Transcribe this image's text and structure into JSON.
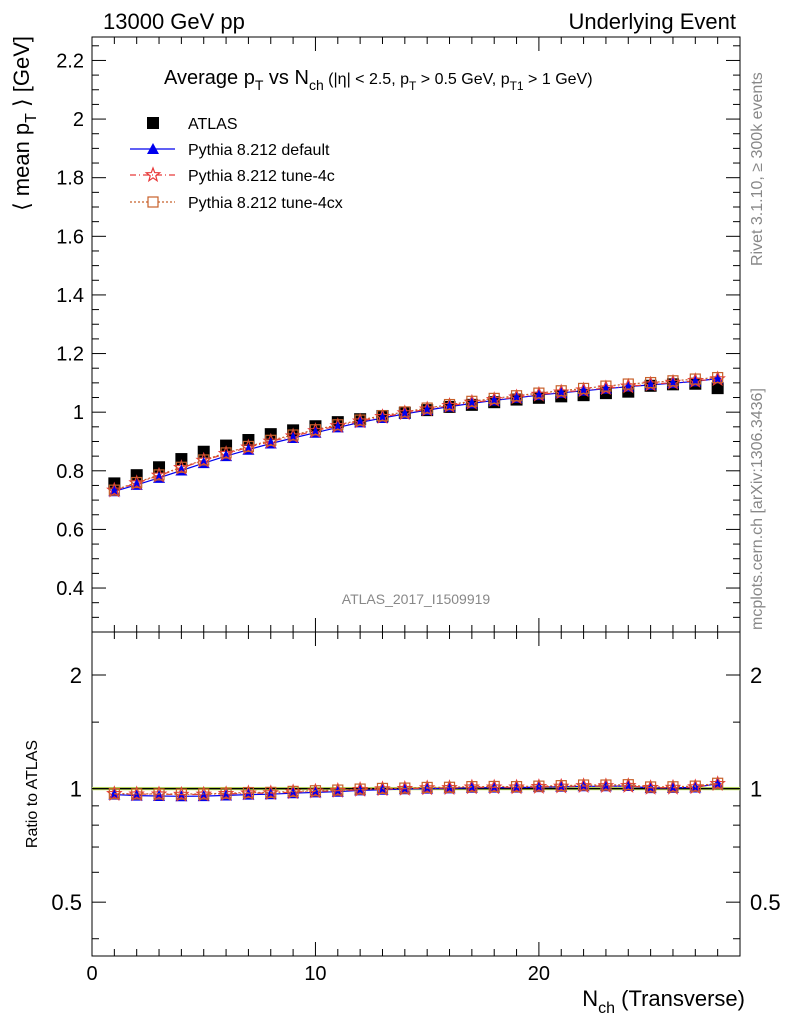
{
  "header": {
    "left": "13000 GeV pp",
    "right": "Underlying Event"
  },
  "side": {
    "rivet": "Rivet 3.1.10, ≥ 300k events",
    "mcplots": "mcplots.cern.ch [arXiv:1306.3436]"
  },
  "watermark": "ATLAS_2017_I1509919",
  "chart_data": [
    {
      "type": "scatter",
      "title": "Average p_T vs N_ch (|η| < 2.5, p_T > 0.5 GeV, p_T1 > 1 GeV)",
      "xlabel": "N_ch (Transverse)",
      "ylabel": "⟨ mean p_T ⟩ [GeV]",
      "xlim": [
        0,
        29
      ],
      "ylim": [
        0.25,
        2.28
      ],
      "y_ticks": [
        0.4,
        0.6,
        0.8,
        1.0,
        1.2,
        1.4,
        1.6,
        1.8,
        2.0,
        2.2
      ],
      "y_tick_labels": [
        "0.4",
        "0.6",
        "0.8",
        "1",
        "1.2",
        "1.4",
        "1.6",
        "1.8",
        "2",
        "2.2"
      ],
      "x": [
        1,
        2,
        3,
        4,
        5,
        6,
        7,
        8,
        9,
        10,
        11,
        12,
        13,
        14,
        15,
        16,
        17,
        18,
        19,
        20,
        21,
        22,
        23,
        24,
        25,
        26,
        27,
        28
      ],
      "legend_position": "top-left",
      "series": [
        {
          "name": "ATLAS",
          "color": "#000000",
          "marker": "square",
          "values": [
            0.757,
            0.785,
            0.812,
            0.84,
            0.865,
            0.886,
            0.905,
            0.925,
            0.938,
            0.952,
            0.966,
            0.976,
            0.987,
            0.998,
            1.007,
            1.018,
            1.025,
            1.034,
            1.043,
            1.049,
            1.054,
            1.058,
            1.065,
            1.07,
            1.09,
            1.095,
            1.097,
            1.082
          ]
        },
        {
          "name": "Pythia 8.212 default",
          "color": "#0000ee",
          "marker": "triangle",
          "values": [
            0.73,
            0.752,
            0.776,
            0.801,
            0.826,
            0.85,
            0.872,
            0.893,
            0.912,
            0.93,
            0.948,
            0.965,
            0.98,
            0.994,
            1.007,
            1.019,
            1.03,
            1.04,
            1.049,
            1.058,
            1.066,
            1.073,
            1.08,
            1.087,
            1.093,
            1.099,
            1.105,
            1.115
          ]
        },
        {
          "name": "Pythia 8.212 tune-4c",
          "color": "#e83a3a",
          "marker": "star",
          "values": [
            0.733,
            0.758,
            0.784,
            0.81,
            0.835,
            0.858,
            0.88,
            0.9,
            0.918,
            0.936,
            0.953,
            0.969,
            0.984,
            0.997,
            1.01,
            1.022,
            1.033,
            1.042,
            1.051,
            1.06,
            1.068,
            1.075,
            1.082,
            1.088,
            1.095,
            1.101,
            1.107,
            1.113
          ]
        },
        {
          "name": "Pythia 8.212 tune-4cx",
          "color": "#c8602a",
          "marker": "open-square",
          "values": [
            0.734,
            0.76,
            0.786,
            0.812,
            0.837,
            0.861,
            0.883,
            0.904,
            0.922,
            0.94,
            0.957,
            0.973,
            0.988,
            1.001,
            1.014,
            1.026,
            1.037,
            1.047,
            1.056,
            1.065,
            1.073,
            1.081,
            1.089,
            1.096,
            1.101,
            1.107,
            1.113,
            1.118
          ]
        }
      ]
    },
    {
      "type": "scatter",
      "title": "",
      "xlabel": "N_ch (Transverse)",
      "ylabel": "Ratio to ATLAS",
      "xlim": [
        0,
        29
      ],
      "ylim": [
        0.36,
        2.6
      ],
      "y_scale": "log",
      "y_ticks": [
        0.5,
        1,
        2
      ],
      "y_tick_labels": [
        "0.5",
        "1",
        "2"
      ],
      "x_ticks": [
        0,
        10,
        20
      ],
      "x_tick_labels": [
        "0",
        "10",
        "20"
      ],
      "x": [
        1,
        2,
        3,
        4,
        5,
        6,
        7,
        8,
        9,
        10,
        11,
        12,
        13,
        14,
        15,
        16,
        17,
        18,
        19,
        20,
        21,
        22,
        23,
        24,
        25,
        26,
        27,
        28
      ],
      "reference_band": {
        "lower": 0.99,
        "upper": 1.01,
        "color": "#ccee66"
      },
      "series": [
        {
          "name": "Pythia 8.212 default",
          "color": "#0000ee",
          "marker": "triangle",
          "values": [
            0.964,
            0.958,
            0.956,
            0.954,
            0.955,
            0.959,
            0.964,
            0.966,
            0.972,
            0.977,
            0.981,
            0.989,
            0.993,
            0.996,
            1.0,
            1.001,
            1.005,
            1.006,
            1.006,
            1.009,
            1.011,
            1.014,
            1.014,
            1.016,
            1.003,
            1.004,
            1.007,
            1.03
          ]
        },
        {
          "name": "Pythia 8.212 tune-4c",
          "color": "#e83a3a",
          "marker": "star",
          "values": [
            0.968,
            0.966,
            0.966,
            0.964,
            0.965,
            0.968,
            0.972,
            0.973,
            0.979,
            0.983,
            0.987,
            0.993,
            0.997,
            0.999,
            1.003,
            1.004,
            1.008,
            1.008,
            1.008,
            1.011,
            1.013,
            1.016,
            1.016,
            1.017,
            1.005,
            1.006,
            1.009,
            1.029
          ]
        },
        {
          "name": "Pythia 8.212 tune-4cx",
          "color": "#c8602a",
          "marker": "open-square",
          "values": [
            0.97,
            0.968,
            0.968,
            0.967,
            0.968,
            0.972,
            0.976,
            0.977,
            0.983,
            0.987,
            0.991,
            0.997,
            1.001,
            1.003,
            1.007,
            1.008,
            1.012,
            1.013,
            1.012,
            1.015,
            1.018,
            1.022,
            1.022,
            1.024,
            1.01,
            1.011,
            1.015,
            1.033
          ]
        }
      ]
    }
  ]
}
